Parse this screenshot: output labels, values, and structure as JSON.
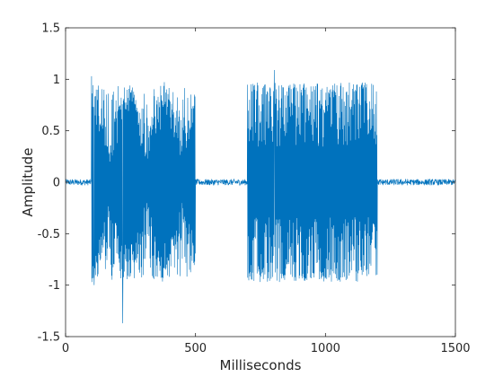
{
  "chart_data": {
    "type": "line",
    "title": "",
    "xlabel": "Milliseconds",
    "ylabel": "Amplitude",
    "xlim": [
      0,
      1500
    ],
    "ylim": [
      -1.5,
      1.5
    ],
    "xticks": [
      0,
      500,
      1000,
      1500
    ],
    "xtick_labels": [
      "0",
      "500",
      "1000",
      "1500"
    ],
    "yticks": [
      -1.5,
      -1,
      -0.5,
      0,
      0.5,
      1,
      1.5
    ],
    "ytick_labels": [
      "-1.5",
      "-1",
      "-0.5",
      "0",
      "0.5",
      "1",
      "1.5"
    ],
    "grid": false,
    "legend": "none",
    "series": [
      {
        "color": "#0072BD",
        "sample_interval_ms": 1,
        "segments": [
          {
            "x_start": 0,
            "x_end": 100,
            "kind": "noise",
            "amplitude": 0.05
          },
          {
            "x_start": 100,
            "x_end": 500,
            "kind": "beating_tone",
            "amplitude": 1.0,
            "envelope_min": 0.35,
            "envelope_period_ms": 140
          },
          {
            "x_start": 500,
            "x_end": 700,
            "kind": "noise",
            "amplitude": 0.05
          },
          {
            "x_start": 700,
            "x_end": 1200,
            "kind": "dense_tone",
            "amplitude": 0.97
          },
          {
            "x_start": 1200,
            "x_end": 1500,
            "kind": "noise",
            "amplitude": 0.05
          }
        ],
        "peaks": [
          {
            "x": 220,
            "y": -1.37
          },
          {
            "x": 803,
            "y": 1.09
          },
          {
            "x": 100,
            "y": 1.03
          },
          {
            "x": 110,
            "y": -1.0
          }
        ]
      }
    ]
  }
}
